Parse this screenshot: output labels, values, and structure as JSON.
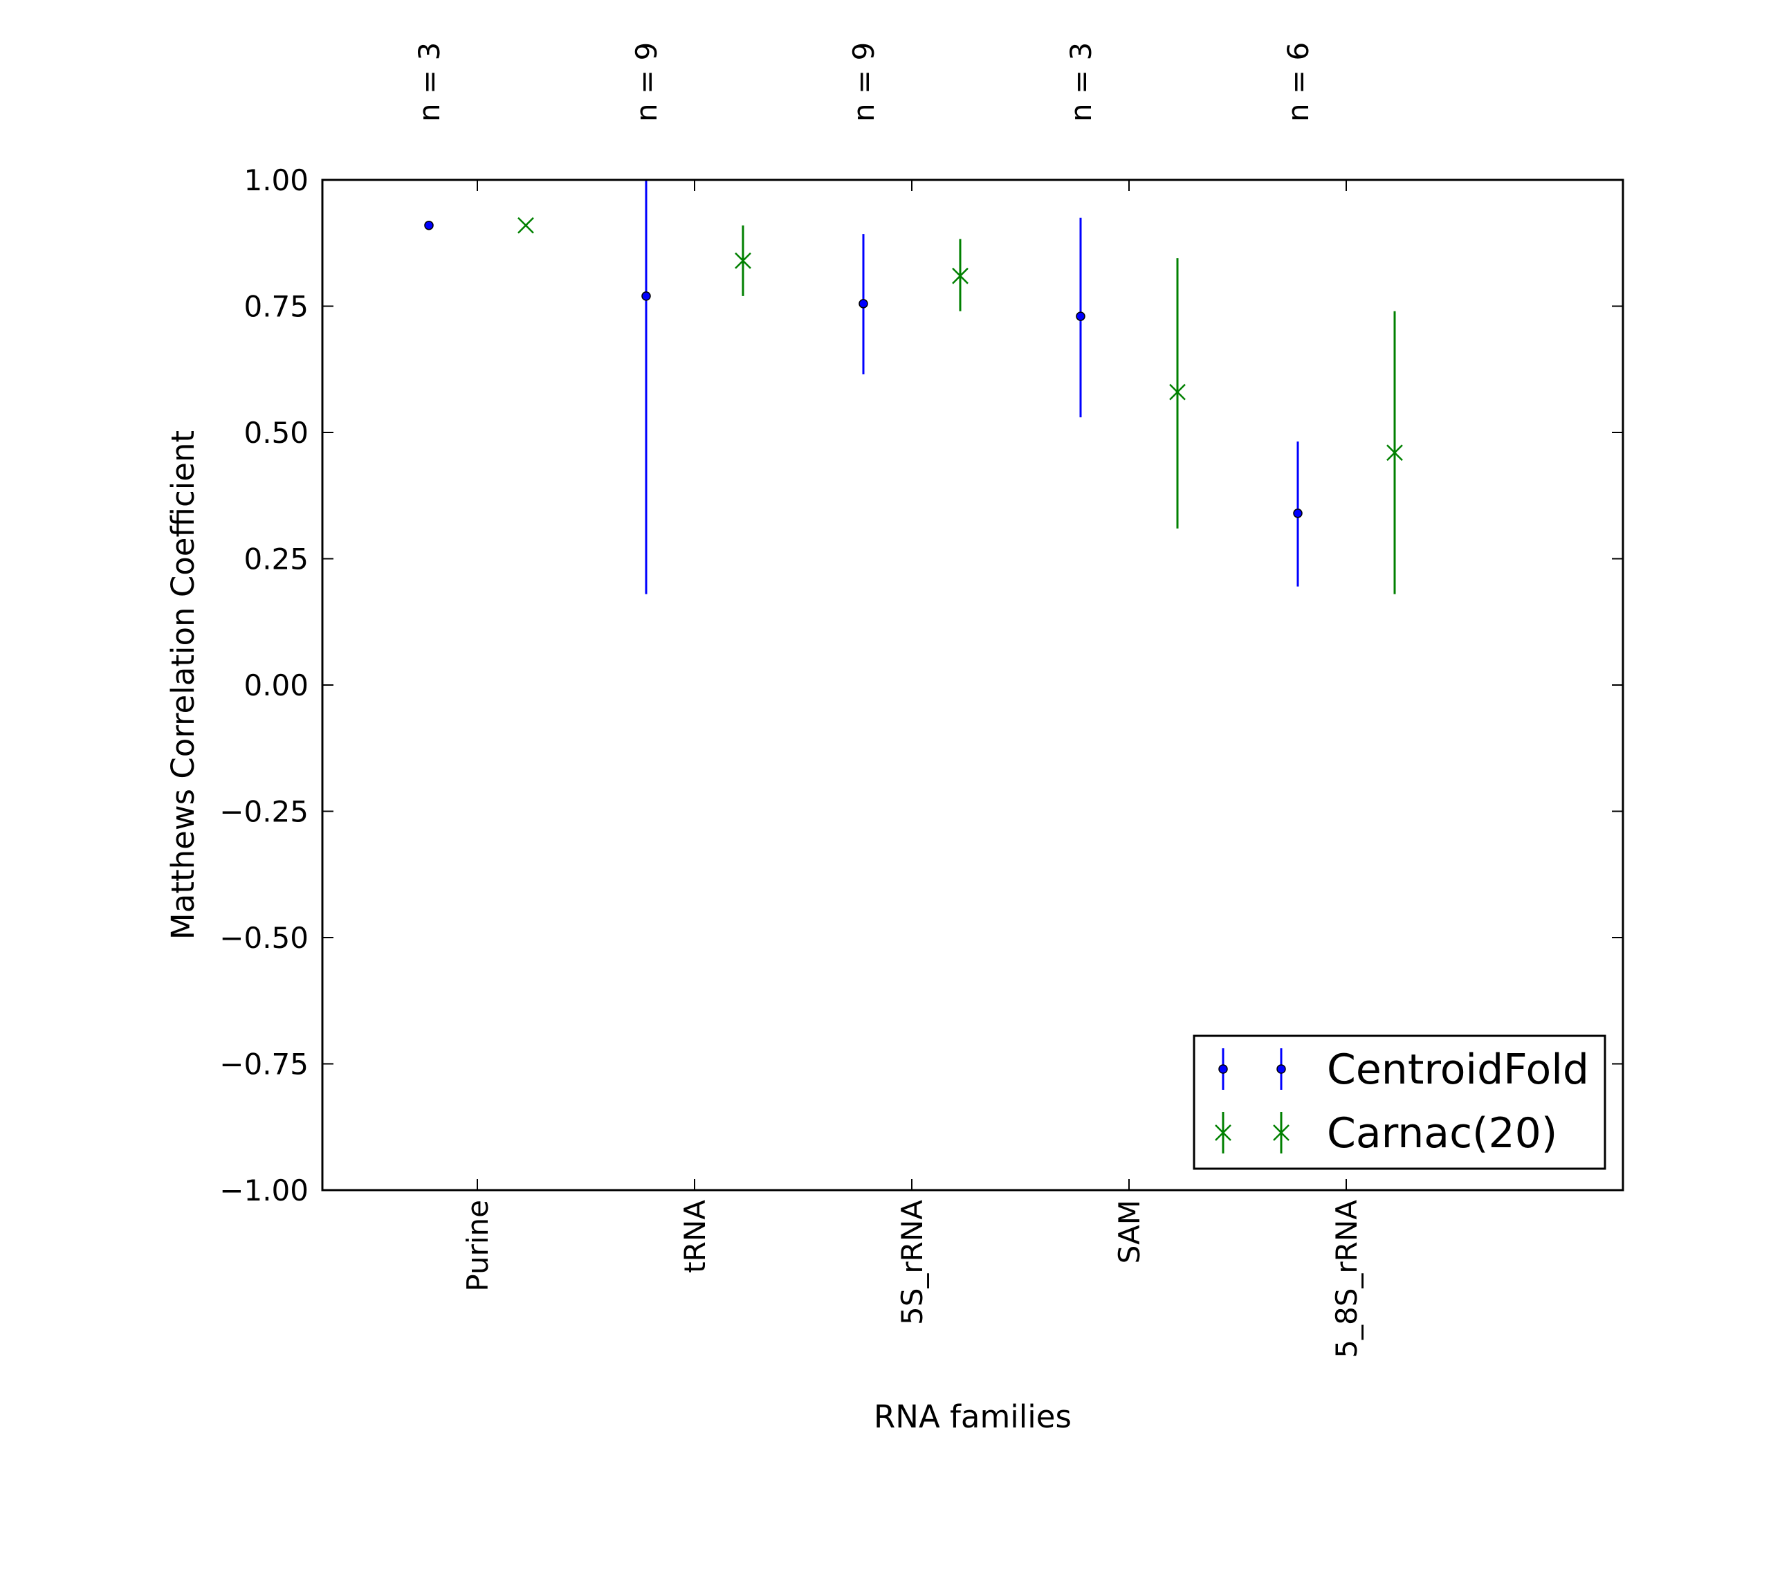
{
  "chart_data": {
    "type": "errorbar",
    "xlabel": "RNA families",
    "ylabel": "Matthews Correlation Coefficient",
    "ylim": [
      -1.0,
      1.0
    ],
    "yticks": [
      "1.00",
      "0.75",
      "0.50",
      "0.25",
      "0.00",
      "−0.25",
      "−0.50",
      "−0.75",
      "−1.00"
    ],
    "ytick_values": [
      1.0,
      0.75,
      0.5,
      0.25,
      0.0,
      -0.25,
      -0.5,
      -0.75,
      -1.0
    ],
    "categories": [
      "Purine",
      "tRNA",
      "5S_rRNA",
      "SAM",
      "5_8S_rRNA"
    ],
    "sample_sizes": [
      "n = 3",
      "n = 9",
      "n = 9",
      "n = 3",
      "n = 6"
    ],
    "grid": false,
    "legend_position": "lower-right",
    "series": [
      {
        "name": "CentroidFold",
        "color": "#0000ff",
        "marker": "dot",
        "values": [
          0.91,
          0.77,
          0.755,
          0.73,
          0.34
        ],
        "lower": [
          0.91,
          0.18,
          0.615,
          0.53,
          0.195
        ],
        "upper": [
          0.91,
          1.0,
          0.893,
          0.925,
          0.482
        ]
      },
      {
        "name": "Carnac(20)",
        "color": "#008000",
        "marker": "x",
        "values": [
          0.91,
          0.84,
          0.81,
          0.58,
          0.46
        ],
        "lower": [
          0.91,
          0.77,
          0.74,
          0.31,
          0.18
        ],
        "upper": [
          0.91,
          0.91,
          0.883,
          0.845,
          0.74
        ]
      }
    ]
  }
}
